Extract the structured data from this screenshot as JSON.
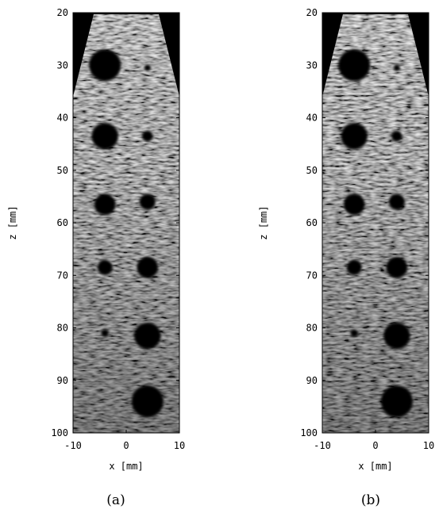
{
  "colors": {
    "background": "#ffffff",
    "axis": "#000000",
    "speckle_base": "#7a7a7a",
    "cyst": "#050505"
  },
  "panels": [
    {
      "caption": "(a)",
      "xlabel": "x [mm]",
      "ylabel": "z [mm]",
      "x_ticks": [
        "-10",
        "0",
        "10"
      ],
      "z_ticks": [
        "20",
        "30",
        "40",
        "50",
        "60",
        "70",
        "80",
        "90",
        "100"
      ]
    },
    {
      "caption": "(b)",
      "xlabel": "x [mm]",
      "ylabel": "z [mm]",
      "x_ticks": [
        "-10",
        "0",
        "10"
      ],
      "z_ticks": [
        "20",
        "30",
        "40",
        "50",
        "60",
        "70",
        "80",
        "90",
        "100"
      ]
    }
  ],
  "image": {
    "x_range_mm": [
      -10,
      10
    ],
    "z_range_mm": [
      20,
      100
    ],
    "cysts_mm": [
      {
        "x": -4,
        "z": 30,
        "r": 3.0
      },
      {
        "x": 4,
        "z": 30.5,
        "r": 0.6
      },
      {
        "x": -4,
        "z": 43.5,
        "r": 2.5
      },
      {
        "x": 4,
        "z": 43.5,
        "r": 1.0
      },
      {
        "x": -4,
        "z": 56.5,
        "r": 2.0
      },
      {
        "x": 4,
        "z": 56,
        "r": 1.5
      },
      {
        "x": -4,
        "z": 68.5,
        "r": 1.4
      },
      {
        "x": 4,
        "z": 68.5,
        "r": 2.0
      },
      {
        "x": -4,
        "z": 81,
        "r": 0.7
      },
      {
        "x": 4,
        "z": 81.5,
        "r": 2.5
      },
      {
        "x": 4,
        "z": 94,
        "r": 3.0
      }
    ]
  }
}
